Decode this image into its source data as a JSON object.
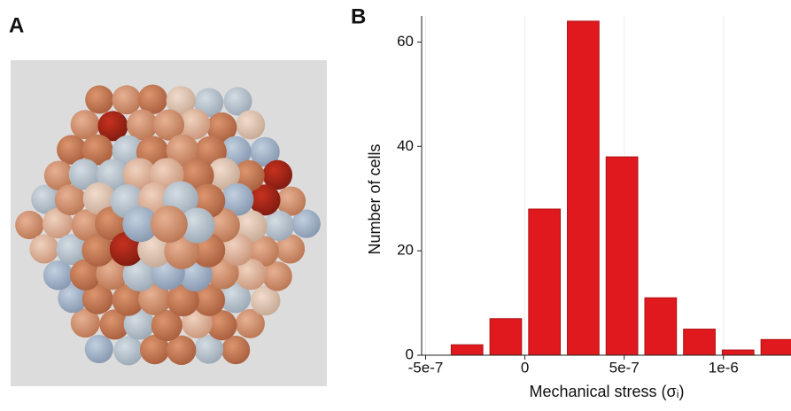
{
  "panel_a": {
    "label": "A"
  },
  "chart_data": {
    "type": "histogram",
    "panel_label": "B",
    "xlabel": "Mechanical stress (σᵢ)",
    "ylabel": "Number of cells",
    "bins": [
      -3.8e-07,
      -1.85e-07,
      1e-08,
      2.05e-07,
      4e-07,
      5.95e-07,
      7.9e-07,
      9.85e-07,
      1.18e-06,
      1.375e-06
    ],
    "values": [
      2,
      7,
      28,
      64,
      38,
      11,
      5,
      1,
      3
    ],
    "color": "#e0191e",
    "xlim": [
      -5.2e-07,
      1.34e-06
    ],
    "xticks": [
      {
        "value": -5e-07,
        "label": "-5e-7"
      },
      0,
      {
        "value": 5e-07,
        "label": "5e-7"
      },
      {
        "value": 1e-06,
        "label": "1e-6"
      }
    ],
    "ylim": [
      0,
      65
    ],
    "yticks": [
      0,
      20,
      40,
      60
    ],
    "grid": true
  }
}
